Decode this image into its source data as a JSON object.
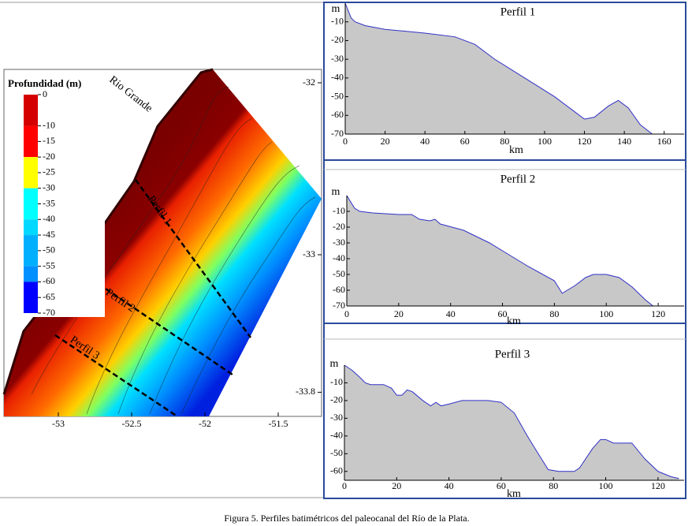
{
  "map": {
    "title": "Profundidad (m)",
    "place": "Rio Grande",
    "profiles": [
      "Perfil 1",
      "Perfil 2",
      "Perfil 3"
    ],
    "xticks": [
      -53,
      -52.5,
      -52,
      -51.5
    ],
    "yticks": [
      -32,
      -33,
      -33.8
    ],
    "legend": {
      "ticks": [
        0,
        -10,
        -15,
        -20,
        -25,
        -30,
        -35,
        -40,
        -45,
        -50,
        -55,
        -60,
        -65,
        -70
      ],
      "bands": [
        {
          "from": 0,
          "to": -10,
          "color": "#d40000"
        },
        {
          "from": -10,
          "to": -20,
          "color": "#ff0000"
        },
        {
          "from": -20,
          "to": -30,
          "color": "#ffff00"
        },
        {
          "from": -30,
          "to": -40,
          "color": "#00ffff"
        },
        {
          "from": -40,
          "to": -45,
          "color": "#00d8ff"
        },
        {
          "from": -45,
          "to": -55,
          "color": "#00b0ff"
        },
        {
          "from": -55,
          "to": -60,
          "color": "#0090ff"
        },
        {
          "from": -60,
          "to": -70,
          "color": "#0000ff"
        }
      ]
    }
  },
  "chart_data": [
    {
      "type": "area",
      "title": "Perfil 1",
      "ylabel": "m",
      "xlabel": "km",
      "fill": "#c8c8c8",
      "color": "#3030c8",
      "x": [
        0,
        3,
        5,
        10,
        20,
        40,
        55,
        65,
        75,
        90,
        105,
        115,
        120,
        125,
        132,
        137,
        142,
        148,
        154,
        167
      ],
      "values": [
        0,
        -8,
        -10,
        -12,
        -14,
        -16,
        -18,
        -22,
        -30,
        -40,
        -50,
        -58,
        -62,
        -61,
        -55,
        -52,
        -56,
        -65,
        -70,
        -70
      ],
      "xlim": [
        0,
        170
      ],
      "ylim": [
        -70,
        0
      ],
      "xticks": [
        0,
        20,
        40,
        60,
        80,
        100,
        120,
        140,
        160
      ],
      "yticks": [
        -10,
        -20,
        -30,
        -40,
        -50,
        -60,
        -70
      ]
    },
    {
      "type": "area",
      "title": "Perfil 2",
      "ylabel": "m",
      "xlabel": "km",
      "fill": "#c8c8c8",
      "color": "#3030c8",
      "x": [
        0,
        3,
        5,
        10,
        20,
        25,
        28,
        32,
        34,
        36,
        45,
        55,
        60,
        70,
        80,
        83,
        88,
        92,
        95,
        100,
        105,
        110,
        115,
        118,
        128
      ],
      "values": [
        0,
        -8,
        -10,
        -11,
        -12,
        -12,
        -15,
        -16,
        -15,
        -18,
        -22,
        -30,
        -35,
        -45,
        -54,
        -62,
        -57,
        -52,
        -50,
        -50,
        -52,
        -58,
        -66,
        -70,
        -70
      ],
      "xlim": [
        0,
        130
      ],
      "ylim": [
        -70,
        0
      ],
      "xticks": [
        0,
        20,
        40,
        60,
        80,
        100,
        120
      ],
      "yticks": [
        -10,
        -20,
        -30,
        -40,
        -50,
        -60,
        -70
      ]
    },
    {
      "type": "area",
      "title": "Perfil 3",
      "ylabel": "m",
      "xlabel": "km",
      "fill": "#c8c8c8",
      "color": "#3030c8",
      "x": [
        0,
        3,
        6,
        8,
        10,
        15,
        18,
        20,
        22,
        24,
        26,
        30,
        33,
        35,
        37,
        40,
        45,
        55,
        60,
        65,
        70,
        75,
        78,
        82,
        88,
        90,
        95,
        98,
        100,
        103,
        110,
        115,
        120,
        125,
        128
      ],
      "values": [
        0,
        -3,
        -7,
        -10,
        -11,
        -11,
        -13,
        -17,
        -17,
        -14,
        -15,
        -20,
        -23,
        -21,
        -23,
        -22,
        -20,
        -20,
        -21,
        -27,
        -40,
        -52,
        -59,
        -60,
        -60,
        -58,
        -47,
        -42,
        -42,
        -44,
        -44,
        -53,
        -60,
        -63,
        -64
      ],
      "xlim": [
        0,
        130
      ],
      "ylim": [
        -65,
        0
      ],
      "xticks": [
        0,
        20,
        40,
        60,
        80,
        100,
        120
      ],
      "yticks": [
        -10,
        -20,
        -30,
        -40,
        -50,
        -60
      ]
    }
  ],
  "caption": "Figura 5. Perfiles batimétricos del paleocanal del Río de la Plata."
}
